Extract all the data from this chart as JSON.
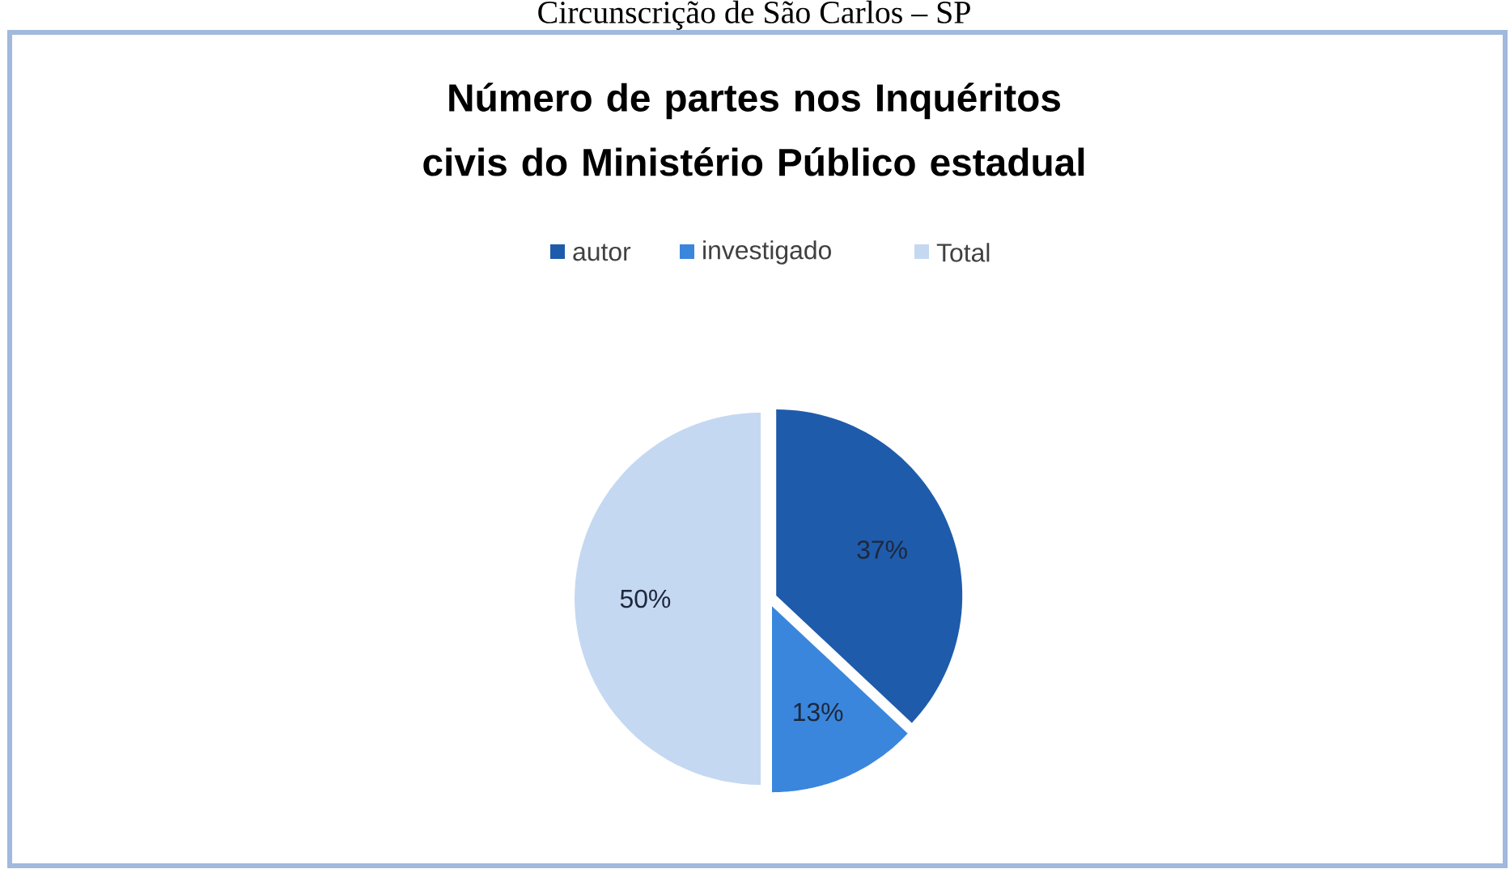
{
  "chart_data": {
    "type": "pie",
    "title": "Número de partes nos Inquéritos civis do Ministério Público estadual",
    "categories": [
      "autor",
      "investigado",
      "Total"
    ],
    "values": [
      37,
      13,
      50
    ],
    "colors": [
      "#1f5bab",
      "#3a86dd",
      "#c5d8f2"
    ],
    "value_labels": [
      "37%",
      "13%",
      "50%"
    ],
    "legend": "top",
    "annotations": [
      "Circunscrição de São Carlos – SP"
    ]
  }
}
